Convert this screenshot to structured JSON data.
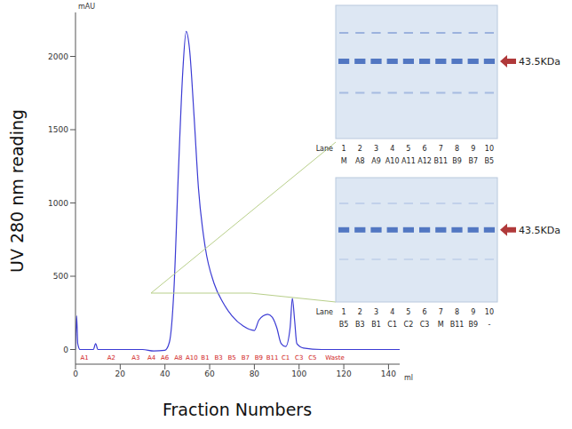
{
  "chart_data": {
    "type": "line",
    "x_label": "Fraction Numbers",
    "y_label": "UV 280 nm reading",
    "y_unit": "mAU",
    "x_unit": "ml",
    "color": "#3b3bd4",
    "grid": false,
    "x": [
      0,
      0.5,
      1,
      2,
      8,
      9,
      10,
      30,
      35,
      40,
      42,
      44,
      46,
      48,
      49.5,
      51,
      53,
      55,
      58,
      62,
      66,
      70,
      75,
      80,
      82,
      84,
      86,
      88,
      90,
      92,
      94,
      96,
      97,
      98,
      99,
      102,
      110,
      145
    ],
    "values": [
      0,
      230,
      40,
      0,
      0,
      40,
      0,
      0,
      -10,
      -5,
      50,
      400,
      1200,
      1900,
      2170,
      2050,
      1600,
      1100,
      700,
      450,
      320,
      230,
      160,
      130,
      200,
      230,
      240,
      220,
      150,
      40,
      20,
      150,
      350,
      200,
      40,
      10,
      0,
      0
    ],
    "xlim": [
      0,
      145
    ],
    "xticks": [
      0,
      20,
      40,
      60,
      80,
      100,
      120,
      140
    ],
    "ylim": [
      -100,
      2300
    ],
    "yticks": [
      0,
      500,
      1000,
      1500,
      2000
    ],
    "fractions": [
      {
        "label": "A1",
        "x": 4
      },
      {
        "label": "A2",
        "x": 16
      },
      {
        "label": "A3",
        "x": 27
      },
      {
        "label": "A4",
        "x": 34
      },
      {
        "label": "A6",
        "x": 40
      },
      {
        "label": "A8",
        "x": 46
      },
      {
        "label": "A10",
        "x": 52
      },
      {
        "label": "B1",
        "x": 58
      },
      {
        "label": "B3",
        "x": 64
      },
      {
        "label": "B5",
        "x": 70
      },
      {
        "label": "B7",
        "x": 76
      },
      {
        "label": "B9",
        "x": 82
      },
      {
        "label": "B11",
        "x": 88
      },
      {
        "label": "C1",
        "x": 94
      },
      {
        "label": "C3",
        "x": 100
      },
      {
        "label": "C5",
        "x": 106
      },
      {
        "label": "Waste",
        "x": 116
      }
    ]
  },
  "gels": [
    {
      "lane_header": "Lane",
      "lanes": [
        1,
        2,
        3,
        4,
        5,
        6,
        7,
        8,
        9,
        10
      ],
      "samples": [
        "M",
        "A8",
        "A9",
        "A10",
        "A11",
        "A12",
        "B11",
        "B9",
        "B7",
        "B5"
      ],
      "band_label": "43.5KDa"
    },
    {
      "lane_header": "Lane",
      "lanes": [
        1,
        2,
        3,
        4,
        5,
        6,
        7,
        8,
        9,
        10
      ],
      "samples": [
        "B5",
        "B3",
        "B1",
        "C1",
        "C2",
        "C3",
        "M",
        "B11",
        "B9",
        "-"
      ],
      "band_label": "43.5KDa"
    }
  ]
}
